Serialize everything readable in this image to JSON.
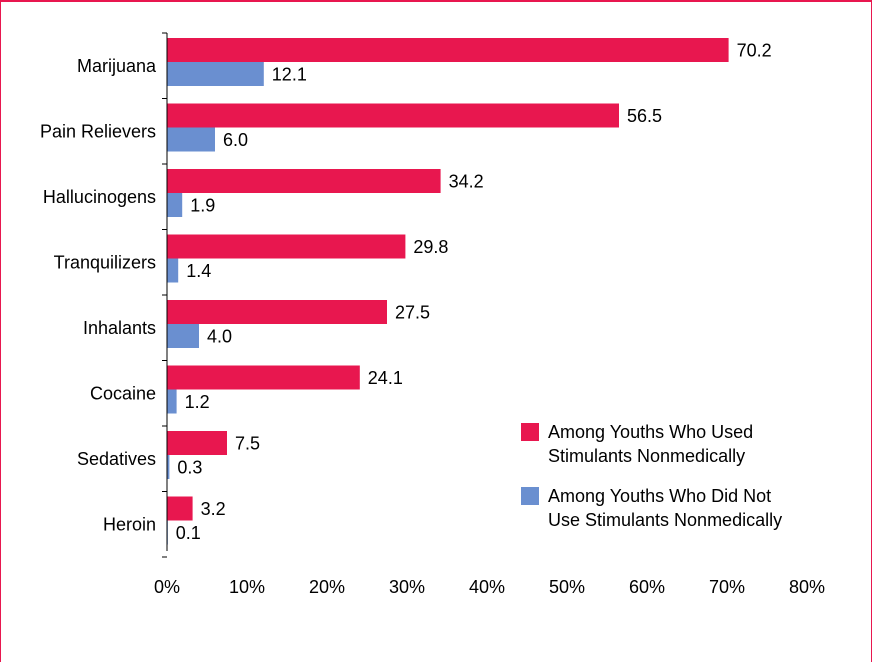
{
  "chart_data": {
    "type": "bar",
    "orientation": "horizontal",
    "categories": [
      "Marijuana",
      "Pain Relievers",
      "Hallucinogens",
      "Tranquilizers",
      "Inhalants",
      "Cocaine",
      "Sedatives",
      "Heroin"
    ],
    "series": [
      {
        "name": "Among Youths Who Used Stimulants Nonmedically",
        "values": [
          70.2,
          56.5,
          34.2,
          29.8,
          27.5,
          24.1,
          7.5,
          3.2
        ],
        "labels": [
          "70.2",
          "56.5",
          "34.2",
          "29.8",
          "27.5",
          "24.1",
          "7.5",
          "3.2"
        ],
        "color": "#e8174f"
      },
      {
        "name": "Among Youths Who Did Not Use Stimulants Nonmedically",
        "values": [
          12.1,
          6.0,
          1.9,
          1.4,
          4.0,
          1.2,
          0.3,
          0.1
        ],
        "labels": [
          "12.1",
          "6.0",
          "1.9",
          "1.4",
          "4.0",
          "1.2",
          "0.3",
          "0.1"
        ],
        "color": "#6a8fd0"
      }
    ],
    "xlim": [
      0,
      80
    ],
    "xticks": [
      "0%",
      "10%",
      "20%",
      "30%",
      "40%",
      "50%",
      "60%",
      "70%",
      "80%"
    ],
    "legend": {
      "position": "lower-right",
      "entries": [
        [
          "Among Youths Who Used",
          "Stimulants Nonmedically"
        ],
        [
          "Among Youths Who Did Not",
          "Use Stimulants Nonmedically"
        ]
      ]
    },
    "title": "",
    "xlabel": "",
    "ylabel": "",
    "grid": false
  }
}
